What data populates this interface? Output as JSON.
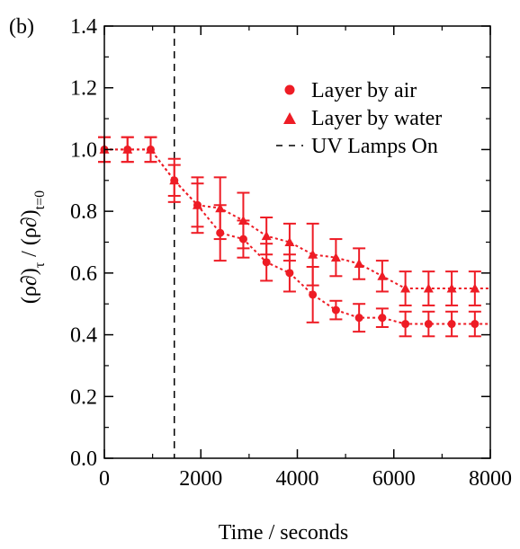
{
  "chart_data": {
    "type": "scatter",
    "panel_label": "(b)",
    "xlabel": "Time / seconds",
    "ylabel_parts": {
      "rho": "(ρ∂)",
      "sub_tau": "τ",
      "sep": " / (ρ∂)",
      "sub_t0": "t=0"
    },
    "xlim": [
      0,
      8000
    ],
    "ylim": [
      0.0,
      1.4
    ],
    "x_ticks": [
      0,
      2000,
      4000,
      6000,
      8000
    ],
    "x_tick_labels": [
      "0",
      "2000",
      "4000",
      "6000",
      "8000"
    ],
    "y_ticks": [
      0.0,
      0.2,
      0.4,
      0.6,
      0.8,
      1.0,
      1.2,
      1.4
    ],
    "y_tick_labels": [
      "0.0",
      "0.2",
      "0.4",
      "0.6",
      "0.8",
      "1.0",
      "1.2",
      "1.4"
    ],
    "grid": false,
    "legend_position": "top-right",
    "colors": {
      "series": "#ee1c25",
      "axis": "#000000",
      "vline": "#000000"
    },
    "vline": {
      "x": 1450,
      "label": "UV Lamps On"
    },
    "series": [
      {
        "name": "Layer by air",
        "marker": "circle",
        "x": [
          0,
          480,
          960,
          1450,
          1930,
          2400,
          2880,
          3360,
          3840,
          4320,
          4800,
          5280,
          5760,
          6240,
          6720,
          7200,
          7680
        ],
        "y": [
          1.0,
          1.0,
          1.0,
          0.9,
          0.82,
          0.73,
          0.71,
          0.635,
          0.6,
          0.53,
          0.48,
          0.455,
          0.455,
          0.435,
          0.435,
          0.435,
          0.435
        ],
        "err": [
          0.04,
          0.04,
          0.04,
          0.05,
          0.07,
          0.09,
          0.06,
          0.06,
          0.06,
          0.09,
          0.03,
          0.045,
          0.03,
          0.04,
          0.04,
          0.04,
          0.04
        ]
      },
      {
        "name": "Layer by water",
        "marker": "triangle",
        "x": [
          0,
          480,
          960,
          1450,
          1930,
          2400,
          2880,
          3360,
          3840,
          4320,
          4800,
          5280,
          5760,
          6240,
          6720,
          7200,
          7680
        ],
        "y": [
          1.0,
          1.0,
          1.0,
          0.9,
          0.82,
          0.81,
          0.77,
          0.72,
          0.7,
          0.66,
          0.65,
          0.63,
          0.59,
          0.55,
          0.55,
          0.55,
          0.55
        ],
        "err": [
          0.04,
          0.04,
          0.04,
          0.07,
          0.09,
          0.1,
          0.09,
          0.06,
          0.06,
          0.1,
          0.06,
          0.05,
          0.05,
          0.055,
          0.055,
          0.055,
          0.055
        ]
      }
    ],
    "legend": [
      {
        "label": "Layer by air",
        "marker": "circle"
      },
      {
        "label": "Layer by water",
        "marker": "triangle"
      },
      {
        "label": "UV Lamps On",
        "marker": "dash"
      }
    ]
  }
}
